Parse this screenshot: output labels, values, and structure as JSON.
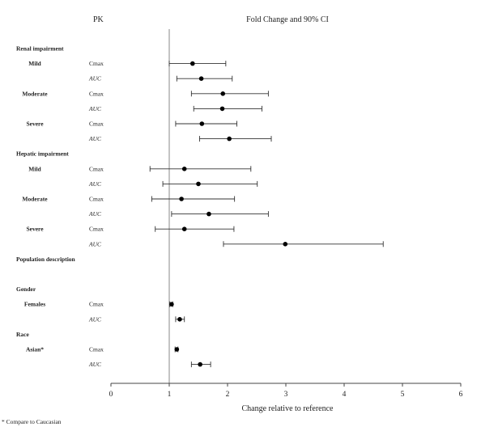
{
  "header": {
    "pk": "PK",
    "fold": "Fold Change and 90% CI"
  },
  "footnote": "* Compare to Caucasian",
  "chart_data": {
    "type": "forest",
    "xlabel": "Change relative to reference",
    "xlim": [
      0,
      6
    ],
    "xticks": [
      0,
      1,
      2,
      3,
      4,
      5,
      6
    ],
    "reference_line": 1,
    "rows": [
      {
        "kind": "section",
        "label": "Renal impairment"
      },
      {
        "kind": "data",
        "group": "Mild",
        "pk": "Cmax",
        "est": 1.4,
        "lo": 1.0,
        "hi": 1.97
      },
      {
        "kind": "data",
        "group": "",
        "pk": "AUC",
        "est": 1.55,
        "lo": 1.13,
        "hi": 2.08
      },
      {
        "kind": "data",
        "group": "Moderate",
        "pk": "Cmax",
        "est": 1.92,
        "lo": 1.38,
        "hi": 2.7
      },
      {
        "kind": "data",
        "group": "",
        "pk": "AUC",
        "est": 1.91,
        "lo": 1.42,
        "hi": 2.59
      },
      {
        "kind": "data",
        "group": "Severe",
        "pk": "Cmax",
        "est": 1.56,
        "lo": 1.11,
        "hi": 2.16
      },
      {
        "kind": "data",
        "group": "",
        "pk": "AUC",
        "est": 2.03,
        "lo": 1.52,
        "hi": 2.75
      },
      {
        "kind": "section",
        "label": "Hepatic impairment"
      },
      {
        "kind": "data",
        "group": "Mild",
        "pk": "Cmax",
        "est": 1.26,
        "lo": 0.67,
        "hi": 2.4
      },
      {
        "kind": "data",
        "group": "",
        "pk": "AUC",
        "est": 1.5,
        "lo": 0.89,
        "hi": 2.51
      },
      {
        "kind": "data",
        "group": "Moderate",
        "pk": "Cmax",
        "est": 1.21,
        "lo": 0.7,
        "hi": 2.12
      },
      {
        "kind": "data",
        "group": "",
        "pk": "AUC",
        "est": 1.68,
        "lo": 1.04,
        "hi": 2.7
      },
      {
        "kind": "data",
        "group": "Severe",
        "pk": "Cmax",
        "est": 1.26,
        "lo": 0.76,
        "hi": 2.11
      },
      {
        "kind": "data",
        "group": "",
        "pk": "AUC",
        "est": 2.99,
        "lo": 1.93,
        "hi": 4.67
      },
      {
        "kind": "section",
        "label": "Population description"
      },
      {
        "kind": "blank"
      },
      {
        "kind": "section",
        "label": "Gender"
      },
      {
        "kind": "data",
        "group": "Females",
        "pk": "Cmax",
        "est": 1.04,
        "lo": 1.01,
        "hi": 1.06
      },
      {
        "kind": "data",
        "group": "",
        "pk": "AUC",
        "est": 1.18,
        "lo": 1.11,
        "hi": 1.26
      },
      {
        "kind": "section",
        "label": "Race"
      },
      {
        "kind": "data",
        "group": "Asian*",
        "pk": "Cmax",
        "est": 1.13,
        "lo": 1.1,
        "hi": 1.15
      },
      {
        "kind": "data",
        "group": "",
        "pk": "AUC",
        "est": 1.53,
        "lo": 1.38,
        "hi": 1.71
      }
    ]
  }
}
